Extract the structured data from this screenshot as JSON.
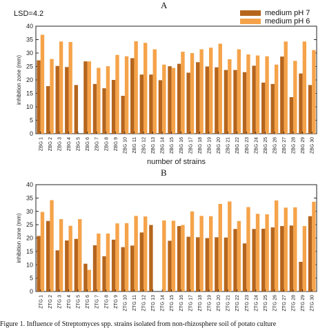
{
  "panel_a_letter": "A",
  "panel_b_letter": "B",
  "lsd_label": "LSD=4.2",
  "legend": [
    {
      "label": "medium  pH 7",
      "color": "#b5651d"
    },
    {
      "label": "medium  pH 6",
      "color": "#f5a34a"
    }
  ],
  "caption": "Figure 1. Influence of Streptomyces spp. strains isolated from non-rhizosphere soil of potato culture",
  "chart_data": [
    {
      "type": "bar",
      "ylabel": "inhibition zone (mm)",
      "xlabel": "number of strains",
      "ylim": [
        0,
        40
      ],
      "yticks": [
        0,
        5,
        10,
        15,
        20,
        25,
        30,
        35,
        40
      ],
      "categories": [
        "ZBG 1",
        "ZBG 2",
        "ZBG 3",
        "ZBG 4",
        "ZBG 5",
        "ZBG 6",
        "ZBG 7",
        "ZBG 8",
        "ZBG 9",
        "ZBG 10",
        "ZBG 11",
        "ZBG 12",
        "ZBG 13",
        "ZBG 14",
        "ZBG 15",
        "ZBG 16",
        "ZBG 17",
        "ZBG 18",
        "ZBG 19",
        "ZBG 20",
        "ZBG 21",
        "ZBG 22",
        "ZBG 23",
        "ZBG 24",
        "ZBG 25",
        "ZBG 26",
        "ZBG 27",
        "ZBG 28",
        "ZBG 29",
        "ZBG 30"
      ],
      "series": [
        {
          "name": "medium  pH 7",
          "color": "#b5651d",
          "values": [
            27.3,
            17.7,
            25.2,
            24.8,
            18.1,
            26.9,
            18.5,
            16.9,
            20.0,
            14.1,
            28.1,
            22.0,
            22.0,
            19.9,
            25.1,
            26.0,
            22.7,
            26.6,
            25.0,
            24.7,
            23.7,
            23.7,
            22.9,
            25.3,
            19.0,
            18.5,
            28.7,
            13.6,
            22.4,
            18.1
          ]
        },
        {
          "name": "medium  pH 6",
          "color": "#f5a34a",
          "values": [
            36.8,
            27.8,
            34.3,
            34.1,
            0,
            26.9,
            24.5,
            25.1,
            29.3,
            28.8,
            34.4,
            33.8,
            31.4,
            25.7,
            24.5,
            30.5,
            30.0,
            31.4,
            32.0,
            33.5,
            27.7,
            31.4,
            29.5,
            29.1,
            28.8,
            25.7,
            34.3,
            27.1,
            34.3,
            31.1
          ]
        }
      ]
    },
    {
      "type": "bar",
      "ylabel": "inhibition zone (mm)",
      "xlabel": "",
      "ylim": [
        0,
        40
      ],
      "yticks": [
        0,
        5,
        10,
        15,
        20,
        25,
        30,
        35,
        40
      ],
      "categories": [
        "ZTG 1",
        "ZTG 2",
        "ZTG 3",
        "ZTG 4",
        "ZTG 5",
        "ZTG 6",
        "ZTG 7",
        "ZTG 8",
        "ZTG 9",
        "ZTG 10",
        "ZTG 11",
        "ZTG 12",
        "ZTG 13",
        "ZTG 14",
        "ZTG 15",
        "ZTG 16",
        "ZTG 17",
        "ZTG 18",
        "ZTG 19",
        "ZTG 20",
        "ZTG 21",
        "ZTG 22",
        "ZTG 23",
        "ZTG 24",
        "ZTG 25",
        "ZTG 26",
        "ZTG 27",
        "ZTG 28",
        "ZTG 29",
        "ZTG 30"
      ],
      "series": [
        {
          "name": "medium  pH 7",
          "color": "#b5651d",
          "values": [
            20.8,
            26.4,
            15.4,
            19.1,
            19.7,
            10.4,
            17.3,
            13.2,
            19.4,
            16.6,
            17.2,
            22.1,
            24.9,
            0,
            19.0,
            24.5,
            20.5,
            20.3,
            20.0,
            20.3,
            20.2,
            23.4,
            18.0,
            23.4,
            23.5,
            24.0,
            24.5,
            24.7,
            11.1,
            28.2
          ]
        },
        {
          "name": "medium  pH 6",
          "color": "#f5a34a",
          "values": [
            29.8,
            34.2,
            27.1,
            24.6,
            27.1,
            8.1,
            21.7,
            21.7,
            25.5,
            25.6,
            28.3,
            28.1,
            0,
            26.6,
            26.5,
            24.9,
            30.0,
            28.3,
            28.2,
            32.8,
            33.7,
            26.4,
            31.6,
            29.1,
            28.9,
            34.1,
            31.4,
            31.5,
            24.5,
            33.6
          ]
        }
      ]
    }
  ]
}
